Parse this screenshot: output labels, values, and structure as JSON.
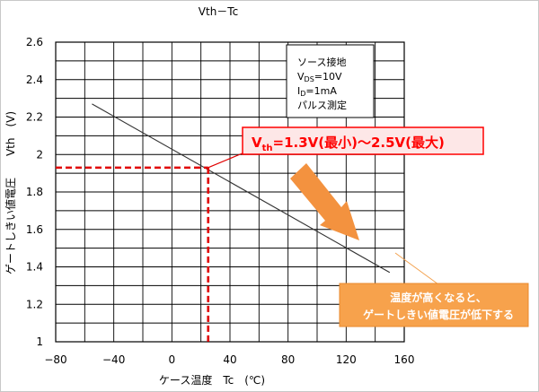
{
  "chart_data": {
    "type": "line",
    "title": "Vth－Tc",
    "xlabel": "ケース温度　Tc　(℃)",
    "ylabel": "ゲートしきい値電圧　　Vth　(V)",
    "xlim": [
      -80,
      160
    ],
    "ylim": [
      1,
      2.6
    ],
    "x_ticks": [
      "−80",
      "−40",
      "0",
      "40",
      "80",
      "120",
      "160"
    ],
    "y_ticks": [
      "1",
      "1.2",
      "1.4",
      "1.6",
      "1.8",
      "2",
      "2.2",
      "2.4",
      "2.6"
    ],
    "grid": true,
    "series": [
      {
        "x": [
          -55,
          150
        ],
        "y": [
          2.27,
          1.37
        ]
      }
    ],
    "conditions": [
      "ソース接地",
      "V_DS=10V",
      "I_D=1mA",
      "パルス測定"
    ],
    "reference": {
      "x": 25,
      "y": 1.93
    },
    "highlight": {
      "prefix": "V",
      "sub": "th",
      "text": "=1.3V(最小)～2.5V(最大)"
    },
    "note": [
      "温度が高くなると、",
      "ゲートしきい値電圧が低下する"
    ],
    "colors": {
      "highlight": "#ff0000",
      "highlight_fill": "#fde7e7",
      "arrow": "#f3923f",
      "note_fill": "#f7a24c"
    }
  }
}
